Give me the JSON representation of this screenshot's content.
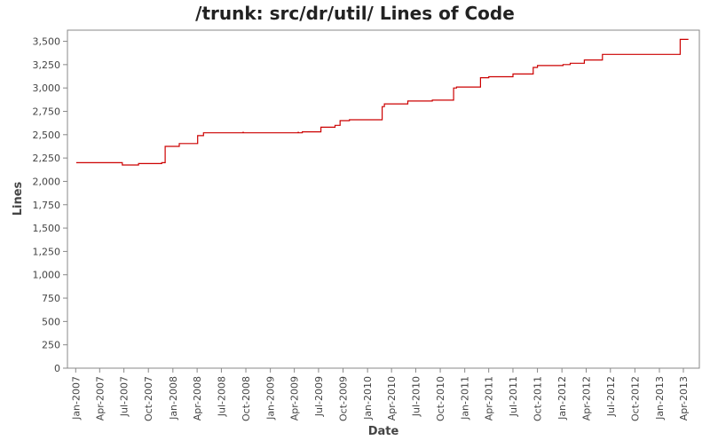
{
  "chart_data": {
    "type": "line",
    "title": "/trunk: src/dr/util/ Lines of Code",
    "xlabel": "Date",
    "ylabel": "Lines",
    "ylim": [
      0,
      3600
    ],
    "xlim": [
      "2006-12-01",
      "2013-05-31"
    ],
    "grid": false,
    "legend": "none",
    "colors": {
      "line": "#cc0000",
      "frame": "#888888",
      "background": "#ffffff"
    },
    "y_ticks": [
      {
        "value": 0,
        "label": "0"
      },
      {
        "value": 250,
        "label": "250"
      },
      {
        "value": 500,
        "label": "500"
      },
      {
        "value": 750,
        "label": "750"
      },
      {
        "value": 1000,
        "label": "1,000"
      },
      {
        "value": 1250,
        "label": "1,250"
      },
      {
        "value": 1500,
        "label": "1,500"
      },
      {
        "value": 1750,
        "label": "1,750"
      },
      {
        "value": 2000,
        "label": "2,000"
      },
      {
        "value": 2250,
        "label": "2,250"
      },
      {
        "value": 2500,
        "label": "2,500"
      },
      {
        "value": 2750,
        "label": "2,750"
      },
      {
        "value": 3000,
        "label": "3,000"
      },
      {
        "value": 3250,
        "label": "3,250"
      },
      {
        "value": 3500,
        "label": "3,500"
      }
    ],
    "x_ticks": [
      {
        "date": "2007-01-01",
        "label": "Jan-2007"
      },
      {
        "date": "2007-04-01",
        "label": "Apr-2007"
      },
      {
        "date": "2007-07-01",
        "label": "Jul-2007"
      },
      {
        "date": "2007-10-01",
        "label": "Oct-2007"
      },
      {
        "date": "2008-01-01",
        "label": "Jan-2008"
      },
      {
        "date": "2008-04-01",
        "label": "Apr-2008"
      },
      {
        "date": "2008-07-01",
        "label": "Jul-2008"
      },
      {
        "date": "2008-10-01",
        "label": "Oct-2008"
      },
      {
        "date": "2009-01-01",
        "label": "Jan-2009"
      },
      {
        "date": "2009-04-01",
        "label": "Apr-2009"
      },
      {
        "date": "2009-07-01",
        "label": "Jul-2009"
      },
      {
        "date": "2009-10-01",
        "label": "Oct-2009"
      },
      {
        "date": "2010-01-01",
        "label": "Jan-2010"
      },
      {
        "date": "2010-04-01",
        "label": "Apr-2010"
      },
      {
        "date": "2010-07-01",
        "label": "Jul-2010"
      },
      {
        "date": "2010-10-01",
        "label": "Oct-2010"
      },
      {
        "date": "2011-01-01",
        "label": "Jan-2011"
      },
      {
        "date": "2011-04-01",
        "label": "Apr-2011"
      },
      {
        "date": "2011-07-01",
        "label": "Jul-2011"
      },
      {
        "date": "2011-10-01",
        "label": "Oct-2011"
      },
      {
        "date": "2012-01-01",
        "label": "Jan-2012"
      },
      {
        "date": "2012-04-01",
        "label": "Apr-2012"
      },
      {
        "date": "2012-07-01",
        "label": "Jul-2012"
      },
      {
        "date": "2012-10-01",
        "label": "Oct-2012"
      },
      {
        "date": "2013-01-01",
        "label": "Jan-2013"
      },
      {
        "date": "2013-04-01",
        "label": "Apr-2013"
      }
    ],
    "series": [
      {
        "points": [
          {
            "date": "2007-01-03",
            "lines": 2200
          },
          {
            "date": "2007-06-25",
            "lines": 2175
          },
          {
            "date": "2007-08-25",
            "lines": 2190
          },
          {
            "date": "2007-11-20",
            "lines": 2200
          },
          {
            "date": "2007-12-03",
            "lines": 2375
          },
          {
            "date": "2008-01-25",
            "lines": 2405
          },
          {
            "date": "2008-04-03",
            "lines": 2490
          },
          {
            "date": "2008-04-25",
            "lines": 2520
          },
          {
            "date": "2008-09-20",
            "lines": 2525
          },
          {
            "date": "2008-09-22",
            "lines": 2520
          },
          {
            "date": "2009-04-15",
            "lines": 2525
          },
          {
            "date": "2009-04-17",
            "lines": 2520
          },
          {
            "date": "2009-05-01",
            "lines": 2530
          },
          {
            "date": "2009-07-10",
            "lines": 2580
          },
          {
            "date": "2009-09-01",
            "lines": 2600
          },
          {
            "date": "2009-09-20",
            "lines": 2650
          },
          {
            "date": "2009-10-25",
            "lines": 2660
          },
          {
            "date": "2010-02-25",
            "lines": 2800
          },
          {
            "date": "2010-03-05",
            "lines": 2830
          },
          {
            "date": "2010-06-01",
            "lines": 2860
          },
          {
            "date": "2010-09-01",
            "lines": 2870
          },
          {
            "date": "2010-11-20",
            "lines": 3000
          },
          {
            "date": "2010-12-01",
            "lines": 3010
          },
          {
            "date": "2011-03-01",
            "lines": 3110
          },
          {
            "date": "2011-04-01",
            "lines": 3120
          },
          {
            "date": "2011-07-01",
            "lines": 3150
          },
          {
            "date": "2011-09-15",
            "lines": 3220
          },
          {
            "date": "2011-10-01",
            "lines": 3240
          },
          {
            "date": "2012-01-05",
            "lines": 3250
          },
          {
            "date": "2012-02-01",
            "lines": 3265
          },
          {
            "date": "2012-03-25",
            "lines": 3300
          },
          {
            "date": "2012-06-01",
            "lines": 3360
          },
          {
            "date": "2013-03-20",
            "lines": 3520
          },
          {
            "date": "2013-04-20",
            "lines": 3520
          }
        ]
      }
    ]
  }
}
